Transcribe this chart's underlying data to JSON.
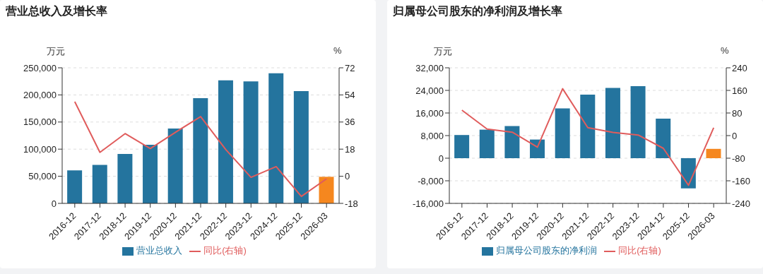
{
  "chart_data": [
    {
      "type": "bar",
      "title": "营业总收入及增长率",
      "ylabel": "万元",
      "y2label": "%",
      "categories": [
        "2016-12",
        "2017-12",
        "2018-12",
        "2019-12",
        "2020-12",
        "2021-12",
        "2022-12",
        "2023-12",
        "2024-12",
        "2025-12",
        "2026-03"
      ],
      "series": [
        {
          "name": "营业总收入",
          "color": "#24749e",
          "colors": [
            "#24749e",
            "#24749e",
            "#24749e",
            "#24749e",
            "#24749e",
            "#24749e",
            "#24749e",
            "#24749e",
            "#24749e",
            "#24749e",
            "#f5871f"
          ],
          "values": [
            61000,
            71000,
            91000,
            108000,
            138000,
            194000,
            227000,
            225000,
            240000,
            207000,
            49000
          ]
        },
        {
          "name": "同比(右轴)",
          "type": "line",
          "axis": "y2",
          "color": "#e05c5c",
          "values": [
            49.5,
            15.9,
            28.3,
            18.4,
            29.2,
            39.6,
            17.7,
            -0.7,
            6.4,
            -13.4,
            -1.7
          ]
        }
      ],
      "ylim": [
        0,
        250000
      ],
      "yticks": [
        0,
        {
          "value": 50000,
          "label": "50,000"
        },
        {
          "value": 100000,
          "label": "100,000"
        },
        {
          "value": 150000,
          "label": "150,000"
        },
        {
          "value": 200000,
          "label": "200,000"
        },
        {
          "value": 250000,
          "label": "250,000"
        }
      ],
      "y2lim": [
        -18,
        72
      ],
      "y2ticks": [
        -18,
        0,
        18,
        36,
        54,
        72
      ],
      "grid": "y",
      "legend": "bottom",
      "marker": "none"
    },
    {
      "type": "bar",
      "title": "归属母公司股东的净利润及增长率",
      "ylabel": "万元",
      "y2label": "%",
      "categories": [
        "2016-12",
        "2017-12",
        "2018-12",
        "2019-12",
        "2020-12",
        "2021-12",
        "2022-12",
        "2023-12",
        "2024-12",
        "2025-12",
        "2026-03"
      ],
      "series": [
        {
          "name": "归属母公司股东的净利润",
          "color": "#24749e",
          "colors": [
            "#24749e",
            "#24749e",
            "#24749e",
            "#24749e",
            "#24749e",
            "#24749e",
            "#24749e",
            "#24749e",
            "#24749e",
            "#24749e",
            "#f5871f"
          ],
          "values": [
            8200,
            10100,
            11400,
            6600,
            17600,
            22500,
            24900,
            25500,
            14000,
            -10700,
            3300
          ]
        },
        {
          "name": "同比(右轴)",
          "type": "line",
          "axis": "y2",
          "color": "#e05c5c",
          "values": [
            90,
            23,
            12,
            -41,
            166,
            28,
            11,
            2,
            -45,
            -176,
            28
          ]
        }
      ],
      "ylim": [
        -16000,
        32000
      ],
      "yticks": [
        {
          "value": -16000,
          "label": "-16,000"
        },
        {
          "value": -8000,
          "label": "-8,000"
        },
        0,
        {
          "value": 8000,
          "label": "8,000"
        },
        {
          "value": 16000,
          "label": "16,000"
        },
        {
          "value": 24000,
          "label": "24,000"
        },
        {
          "value": 32000,
          "label": "32,000"
        }
      ],
      "y2lim": [
        -240,
        240
      ],
      "y2ticks": [
        -240,
        -160,
        -80,
        0,
        80,
        160,
        240
      ],
      "grid": "y",
      "legend": "bottom",
      "marker": "none"
    }
  ]
}
